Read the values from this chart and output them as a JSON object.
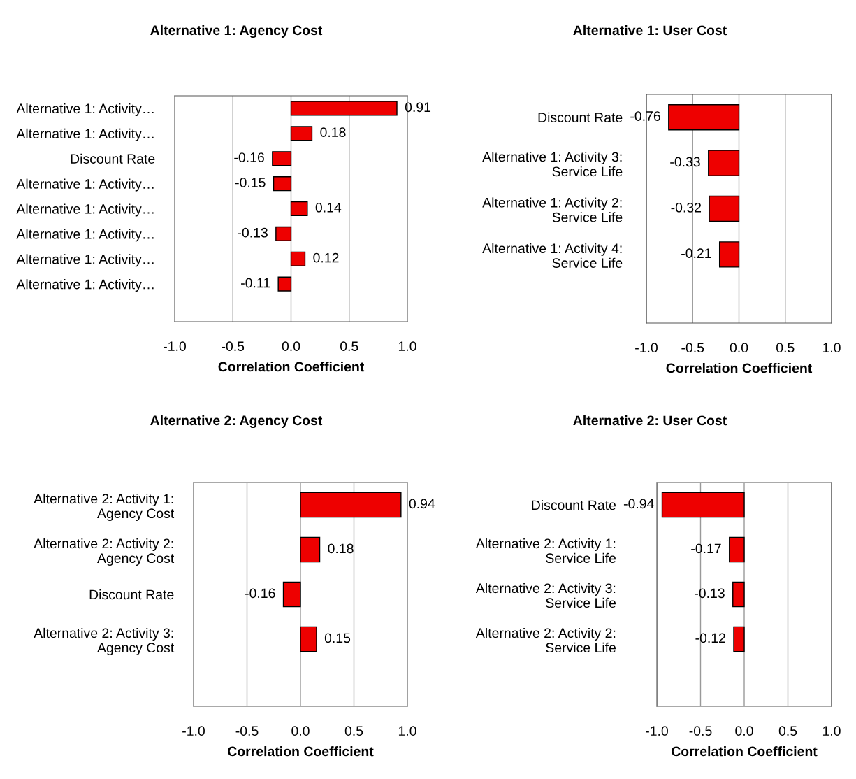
{
  "chart_data": [
    {
      "type": "bar",
      "orientation": "horizontal",
      "title": "Alternative 1: Agency Cost",
      "xlabel": "Correlation Coefficient",
      "categories": [
        "Alternative 1: Activity…",
        "Alternative 1: Activity…",
        "Discount Rate",
        "Alternative 1: Activity…",
        "Alternative 1: Activity…",
        "Alternative 1: Activity…",
        "Alternative 1: Activity…",
        "Alternative 1: Activity…"
      ],
      "values": [
        0.91,
        0.18,
        -0.16,
        -0.15,
        0.14,
        -0.13,
        0.12,
        -0.11
      ],
      "color": "#ee0000",
      "xlim": [
        -1.0,
        1.0
      ],
      "xticks": [
        {
          "value": -1,
          "label": "-1.0"
        },
        {
          "value": -0.5,
          "label": "-0.5"
        },
        {
          "value": 0,
          "label": "0.0"
        },
        {
          "value": 0.5,
          "label": "0.5"
        },
        {
          "value": 1,
          "label": "1.0"
        }
      ],
      "grid": "x",
      "data_labels": true
    },
    {
      "type": "bar",
      "orientation": "horizontal",
      "title": "Alternative 1: User Cost",
      "xlabel": "Correlation Coefficient",
      "categories": [
        "Discount Rate",
        "Alternative 1: Activity 3:\nService Life",
        "Alternative 1: Activity 2:\nService Life",
        "Alternative 1: Activity 4:\nService Life"
      ],
      "values": [
        -0.76,
        -0.33,
        -0.32,
        -0.21
      ],
      "color": "#ee0000",
      "xlim": [
        -1.0,
        1.0
      ],
      "xticks": [
        {
          "value": -1,
          "label": "-1.0"
        },
        {
          "value": -0.5,
          "label": "-0.5"
        },
        {
          "value": 0,
          "label": "0.0"
        },
        {
          "value": 0.5,
          "label": "0.5"
        },
        {
          "value": 1,
          "label": "1.0"
        }
      ],
      "grid": "x",
      "data_labels": true
    },
    {
      "type": "bar",
      "orientation": "horizontal",
      "title": "Alternative 2: Agency Cost",
      "xlabel": "Correlation Coefficient",
      "categories": [
        "Alternative 2: Activity 1:\nAgency Cost",
        "Alternative 2: Activity 2:\nAgency Cost",
        "Discount Rate",
        "Alternative 2: Activity 3:\nAgency Cost"
      ],
      "values": [
        0.94,
        0.18,
        -0.16,
        0.15
      ],
      "color": "#ee0000",
      "xlim": [
        -1.0,
        1.0
      ],
      "xticks": [
        {
          "value": -1,
          "label": "-1.0"
        },
        {
          "value": -0.5,
          "label": "-0.5"
        },
        {
          "value": 0,
          "label": "0.0"
        },
        {
          "value": 0.5,
          "label": "0.5"
        },
        {
          "value": 1,
          "label": "1.0"
        }
      ],
      "grid": "x",
      "data_labels": true
    },
    {
      "type": "bar",
      "orientation": "horizontal",
      "title": "Alternative 2: User Cost",
      "xlabel": "Correlation Coefficient",
      "categories": [
        "Discount Rate",
        "Alternative 2: Activity 1:\nService Life",
        "Alternative 2: Activity 3:\nService Life",
        "Alternative 2: Activity 2:\nService Life"
      ],
      "values": [
        -0.94,
        -0.17,
        -0.13,
        -0.12
      ],
      "color": "#ee0000",
      "xlim": [
        -1.0,
        1.0
      ],
      "xticks": [
        {
          "value": -1,
          "label": "-1.0"
        },
        {
          "value": -0.5,
          "label": "-0.5"
        },
        {
          "value": 0,
          "label": "0.0"
        },
        {
          "value": 0.5,
          "label": "0.5"
        },
        {
          "value": 1,
          "label": "1.0"
        }
      ],
      "grid": "x",
      "data_labels": true
    }
  ]
}
